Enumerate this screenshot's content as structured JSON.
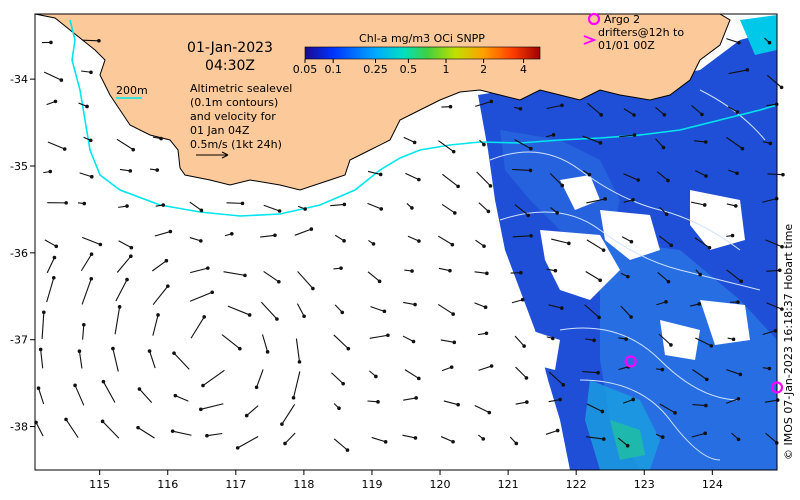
{
  "map": {
    "date": "01-Jan-2023",
    "time": "04:30Z",
    "colorbar_title": "Chl-a mg/m3 OCi SNPP",
    "colorbar_ticks": [
      "0.05",
      "0.1",
      "0.25",
      "0.5",
      "1",
      "2",
      "4"
    ],
    "colorbar_colors": [
      "#1a0a8c",
      "#0033ff",
      "#00aaff",
      "#00e0c0",
      "#40d040",
      "#c0e000",
      "#ffa000",
      "#ff4000",
      "#a00000"
    ],
    "depth_legend": "200m",
    "altimetry_text": [
      "Altimetric sealevel",
      "(0.1m contours)",
      "and velocity for",
      "01 Jan 04Z",
      "0.5m/s (1kt 24h)"
    ],
    "argo_text": [
      "Argo 2",
      "drifters@12h to",
      "01/01 00Z"
    ],
    "credit": "© IMOS 07-Jan-2023 16:18:37 Hobart time",
    "lon_ticks": [
      "115",
      "116",
      "117",
      "118",
      "119",
      "120",
      "121",
      "122",
      "123",
      "124"
    ],
    "lat_ticks": [
      "-34",
      "-35",
      "-36",
      "-37",
      "-38"
    ],
    "land_color": "#fbc99a",
    "depth_contour_color": "#00e5ee",
    "argo_color": "#ff00ff",
    "argo_floats": [
      {
        "lon": 122.8,
        "lat": -37.25
      },
      {
        "lon": 124.95,
        "lat": -37.55
      }
    ]
  }
}
